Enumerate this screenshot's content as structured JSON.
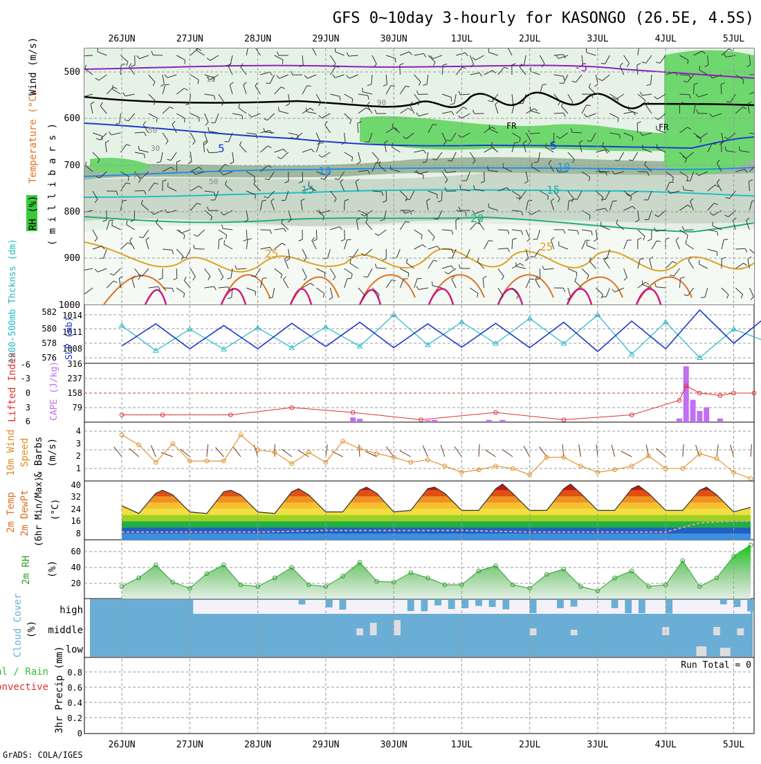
{
  "title": "GFS 0~10day 3-hourly for KASONGO (26.5E, 4.5S)",
  "credit": "GrADS: COLA/IGES",
  "dates": [
    "26JUN",
    "27JUN",
    "28JUN",
    "29JUN",
    "30JUN",
    "1JUL",
    "2JUL",
    "3JUL",
    "4JUL",
    "5JUL"
  ],
  "colors": {
    "rh": "#3cc83c",
    "tempLabel": "#e07020",
    "windLabel": "#6060c0",
    "thick": "#20b8c8",
    "slp": "#1838c8",
    "cape": "#c070f0",
    "li": "#e03030",
    "wind10": "#e08c20",
    "rh2m": "#30a030",
    "cloud": "#6aaed6",
    "precipTotal": "#30c030",
    "precipConv": "#e03030"
  },
  "panels": {
    "upper": {
      "ylabel_rh": "RH (%)",
      "ylabel_temp": "Temperature (°C)",
      "ylabel_wind": "Wind (m/s)",
      "ylabel_mb": "( m i l l i b a r s )",
      "ticks": [
        "500",
        "600",
        "700",
        "800",
        "900",
        "1000"
      ],
      "contour_labels": [
        "-5",
        "5",
        "5",
        "10",
        "10",
        "15",
        "15",
        "20",
        "25",
        "25",
        "FR",
        "FR",
        "10",
        "30",
        "50",
        "70",
        "90",
        "50"
      ]
    },
    "thickness": {
      "ylabel_left": "1000-500mb Thcknss (dm)",
      "ylabel_right": "SLP (mb)",
      "ticks_left": [
        "576",
        "578",
        "580",
        "582"
      ],
      "ticks_right": [
        "1008",
        "1011",
        "1014"
      ]
    },
    "cape": {
      "ylabel_left": "Lifted Index",
      "ylabel_right": "CAPE (J/kg)",
      "ticks_left": [
        "6",
        "3",
        "0",
        "-3",
        "-6"
      ],
      "ticks_right": [
        "79",
        "158",
        "237",
        "316"
      ]
    },
    "wind10": {
      "ylabel_a": "10m Wind",
      "ylabel_b": "Speed",
      "ylabel_c": "& Barbs",
      "ylabel_d": "(m/s)",
      "ticks": [
        "1",
        "2",
        "3",
        "4"
      ]
    },
    "temp2m": {
      "ylabel_a": "2m Temp",
      "ylabel_b": "2m DewPt",
      "ylabel_c": "(6hr Min/Max)",
      "ylabel_d": "(°C)",
      "ticks": [
        "8",
        "16",
        "24",
        "32",
        "40"
      ]
    },
    "rh2m": {
      "ylabel_a": "2m RH",
      "ylabel_b": "(%)",
      "ticks": [
        "20",
        "40",
        "60"
      ]
    },
    "cloud": {
      "ylabel_a": "Cloud Cover",
      "ylabel_b": "(%)",
      "levels": [
        "high",
        "middle",
        "low"
      ]
    },
    "precip": {
      "ylabel_a": "3hr Precip (mm)",
      "ylabel_total": "Total / Rain",
      "ylabel_conv": "Convective",
      "run_total": "Run Total = 0",
      "ticks": [
        "0",
        "0.2",
        "0.4",
        "0.6",
        "0.8"
      ]
    }
  },
  "chart_data": [
    {
      "type": "line",
      "panel": "thickness_slp",
      "series": [
        {
          "name": "1000-500mb Thcknss (dm)",
          "x_days": [
            0.0,
            0.5,
            1.0,
            1.5,
            2.0,
            2.5,
            3.0,
            3.5,
            4.0,
            4.5,
            5.0,
            5.5,
            6.0,
            6.5,
            7.0,
            7.5,
            8.0,
            8.5,
            9.0,
            9.5
          ],
          "values": [
            580.5,
            577.0,
            580.0,
            577.2,
            580.2,
            577.4,
            580.3,
            577.6,
            582.0,
            577.8,
            581.0,
            578.0,
            581.5,
            578.0,
            582.0,
            576.5,
            581.0,
            576.0,
            580.0,
            578.2
          ]
        },
        {
          "name": "SLP (mb)",
          "x_days": [
            0.0,
            0.5,
            1.0,
            1.5,
            2.0,
            2.5,
            3.0,
            3.5,
            4.0,
            4.5,
            5.0,
            5.5,
            6.0,
            6.5,
            7.0,
            7.5,
            8.0,
            8.5,
            9.0,
            9.5
          ],
          "values": [
            1008.5,
            1012.5,
            1008.0,
            1012.2,
            1008.0,
            1012.6,
            1008.4,
            1012.8,
            1008.2,
            1012.5,
            1008.3,
            1012.6,
            1008.2,
            1012.8,
            1007.5,
            1013.0,
            1008.0,
            1015.0,
            1009.0,
            1014.0
          ]
        }
      ]
    },
    {
      "type": "bar",
      "panel": "cape_li",
      "series": [
        {
          "name": "CAPE (J/kg)",
          "x_days": [
            3.4,
            3.5,
            4.5,
            4.6,
            5.4,
            5.6,
            8.2,
            8.3,
            8.4,
            8.5,
            8.6,
            8.8
          ],
          "values": [
            25,
            18,
            10,
            12,
            12,
            12,
            20,
            300,
            120,
            60,
            80,
            20
          ]
        },
        {
          "name": "Lifted Index",
          "x_days": [
            0.0,
            0.6,
            1.6,
            2.5,
            3.4,
            4.4,
            5.5,
            6.5,
            7.5,
            8.2,
            8.3,
            8.5,
            8.8,
            9.0,
            9.3
          ],
          "values": [
            4.5,
            4.5,
            4.5,
            3.0,
            4.0,
            5.5,
            4.0,
            5.5,
            4.5,
            1.5,
            -1.5,
            0.0,
            0.5,
            0.0,
            0.0
          ]
        }
      ]
    },
    {
      "type": "line",
      "panel": "wind10m",
      "series": [
        {
          "name": "10m Wind Speed (m/s)",
          "x_days": [
            0.0,
            0.25,
            0.5,
            0.75,
            1.0,
            1.25,
            1.5,
            1.75,
            2.0,
            2.25,
            2.5,
            2.75,
            3.0,
            3.25,
            3.5,
            3.75,
            4.0,
            4.25,
            4.5,
            4.75,
            5.0,
            5.25,
            5.5,
            5.75,
            6.0,
            6.25,
            6.5,
            6.75,
            7.0,
            7.25,
            7.5,
            7.75,
            8.0,
            8.25,
            8.5,
            8.75,
            9.0,
            9.25
          ],
          "values": [
            4.0,
            3.2,
            1.8,
            3.3,
            1.9,
            1.9,
            1.9,
            4.0,
            2.8,
            2.6,
            1.7,
            2.6,
            1.8,
            3.5,
            2.9,
            2.5,
            2.2,
            1.8,
            2.0,
            1.5,
            1.0,
            1.2,
            1.5,
            1.3,
            0.8,
            2.2,
            2.2,
            1.5,
            1.0,
            1.2,
            1.5,
            2.3,
            1.3,
            1.3,
            2.5,
            2.1,
            1.0,
            0.5
          ]
        }
      ]
    },
    {
      "type": "area",
      "panel": "temp2m",
      "series": [
        {
          "name": "2m Temp (°C)",
          "x_days": [
            0.0,
            0.25,
            0.5,
            0.6,
            0.75,
            1.0,
            1.25,
            1.5,
            1.6,
            1.75,
            2.0,
            2.25,
            2.5,
            2.6,
            2.75,
            3.0,
            3.25,
            3.5,
            3.6,
            3.75,
            4.0,
            4.25,
            4.5,
            4.6,
            4.75,
            5.0,
            5.25,
            5.5,
            5.6,
            5.75,
            6.0,
            6.25,
            6.5,
            6.6,
            6.75,
            7.0,
            7.25,
            7.5,
            7.6,
            7.75,
            8.0,
            8.25,
            8.5,
            8.6,
            8.75,
            9.0,
            9.25
          ],
          "values": [
            26,
            21,
            34,
            36,
            33,
            22,
            21,
            35,
            36,
            33,
            22,
            21,
            35,
            37,
            33,
            22,
            22,
            36,
            38,
            34,
            22,
            23,
            37,
            38,
            34,
            23,
            23,
            37,
            40,
            34,
            23,
            23,
            37,
            40,
            34,
            23,
            23,
            37,
            39,
            34,
            23,
            23,
            36,
            38,
            33,
            22,
            25
          ]
        },
        {
          "name": "2m DewPt (°C)",
          "x_days": [
            0.0,
            1.0,
            2.0,
            3.0,
            4.0,
            5.0,
            6.0,
            7.0,
            8.0,
            8.5,
            9.0,
            9.25
          ],
          "values": [
            9,
            9,
            9,
            10,
            10,
            10,
            9,
            9,
            9,
            15,
            16,
            16
          ]
        }
      ]
    },
    {
      "type": "area",
      "panel": "rh2m",
      "series": [
        {
          "name": "2m RH (%)",
          "x_days": [
            0.0,
            0.25,
            0.5,
            0.75,
            1.0,
            1.25,
            1.5,
            1.75,
            2.0,
            2.25,
            2.5,
            2.75,
            3.0,
            3.25,
            3.5,
            3.75,
            4.0,
            4.25,
            4.5,
            4.75,
            5.0,
            5.25,
            5.5,
            5.75,
            6.0,
            6.25,
            6.5,
            6.75,
            7.0,
            7.25,
            7.5,
            7.75,
            8.0,
            8.25,
            8.5,
            8.75,
            9.0,
            9.25
          ],
          "values": [
            20,
            30,
            45,
            25,
            18,
            35,
            45,
            22,
            20,
            30,
            42,
            22,
            20,
            32,
            48,
            26,
            25,
            36,
            30,
            22,
            22,
            38,
            44,
            22,
            18,
            34,
            40,
            20,
            15,
            30,
            38,
            20,
            22,
            50,
            20,
            30,
            55,
            68
          ]
        }
      ]
    },
    {
      "type": "table",
      "panel": "cloud_cover",
      "levels": [
        "high",
        "middle",
        "low"
      ],
      "note": "mostly overcast cover at all three levels; high cloud clears after 27JUN with varying partial gaps"
    },
    {
      "type": "bar",
      "panel": "precip",
      "series": [
        {
          "name": "Total / Rain",
          "values": []
        },
        {
          "name": "Convective",
          "values": []
        }
      ],
      "ylim": [
        0,
        1
      ]
    }
  ]
}
